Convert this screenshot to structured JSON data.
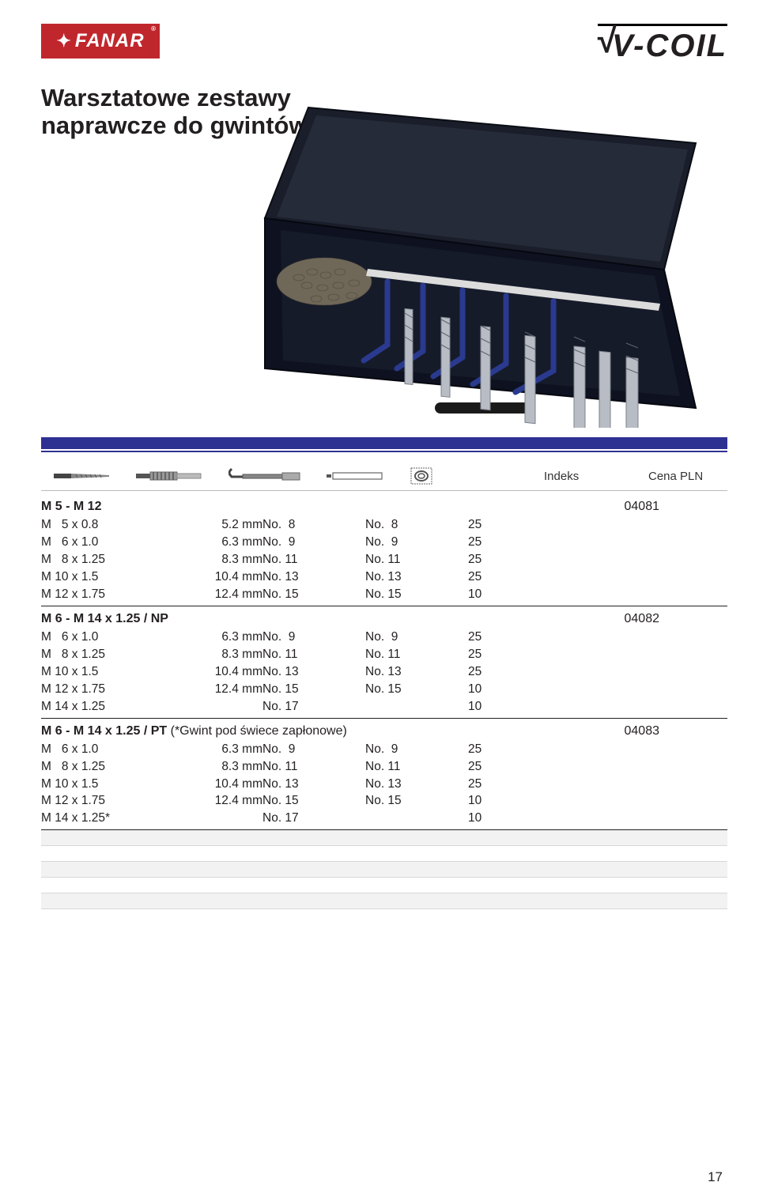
{
  "logos": {
    "fanar_text": "FANAR",
    "vcoil_text": "V-COIL"
  },
  "title_line1": "Warsztatowe zestawy",
  "title_line2": "naprawcze do gwintów",
  "header_cols": {
    "indeks": "Indeks",
    "cena": "Cena PLN"
  },
  "groups": [
    {
      "title": "M 5 - M 12",
      "indeks": "04081",
      "rows": [
        {
          "c1": "M   5 x 0.8",
          "c2": "5.2 mm",
          "c3": "No.  8",
          "c4": "No.  8",
          "c5": "25"
        },
        {
          "c1": "M   6 x 1.0",
          "c2": "6.3 mm",
          "c3": "No.  9",
          "c4": "No.  9",
          "c5": "25"
        },
        {
          "c1": "M   8 x 1.25",
          "c2": "8.3 mm",
          "c3": "No. 11",
          "c4": "No. 11",
          "c5": "25"
        },
        {
          "c1": "M 10 x 1.5",
          "c2": "10.4 mm",
          "c3": "No. 13",
          "c4": "No. 13",
          "c5": "25"
        },
        {
          "c1": "M 12 x 1.75",
          "c2": "12.4 mm",
          "c3": "No. 15",
          "c4": "No. 15",
          "c5": "10"
        }
      ]
    },
    {
      "title": "M 6 - M 14 x 1.25 / NP",
      "indeks": "04082",
      "rows": [
        {
          "c1": "M   6 x 1.0",
          "c2": "6.3 mm",
          "c3": "No.  9",
          "c4": "No.  9",
          "c5": "25"
        },
        {
          "c1": "M   8 x 1.25",
          "c2": "8.3 mm",
          "c3": "No. 11",
          "c4": "No. 11",
          "c5": "25"
        },
        {
          "c1": "M 10 x 1.5",
          "c2": "10.4 mm",
          "c3": "No. 13",
          "c4": "No. 13",
          "c5": "25"
        },
        {
          "c1": "M 12 x 1.75",
          "c2": "12.4 mm",
          "c3": "No. 15",
          "c4": "No. 15",
          "c5": "10"
        },
        {
          "c1": "M 14 x 1.25",
          "c2": "",
          "c3": "No. 17",
          "c4": "",
          "c5": "10"
        }
      ]
    },
    {
      "title": "M 6 - M 14 x 1.25 / PT",
      "title_suffix": "  (*Gwint pod świece zapłonowe)",
      "indeks": "04083",
      "rows": [
        {
          "c1": "M   6 x 1.0",
          "c2": "6.3 mm",
          "c3": "No.  9",
          "c4": "No.  9",
          "c5": "25"
        },
        {
          "c1": "M   8 x 1.25",
          "c2": "8.3 mm",
          "c3": "No. 11",
          "c4": "No. 11",
          "c5": "25"
        },
        {
          "c1": "M 10 x 1.5",
          "c2": "10.4 mm",
          "c3": "No. 13",
          "c4": "No. 13",
          "c5": "25"
        },
        {
          "c1": "M 12 x 1.75",
          "c2": "12.4 mm",
          "c3": "No. 15",
          "c4": "No. 15",
          "c5": "10"
        },
        {
          "c1": "M 14 x 1.25*",
          "c2": "",
          "c3": "No. 17",
          "c4": "",
          "c5": "10"
        }
      ]
    }
  ],
  "empty_row_count": 5,
  "page_number": "17",
  "colors": {
    "brand_red": "#c0272d",
    "brand_blue": "#2e3192",
    "text": "#231f20",
    "grid_light": "#d7d7d7",
    "stripe": "#f2f2f2"
  }
}
